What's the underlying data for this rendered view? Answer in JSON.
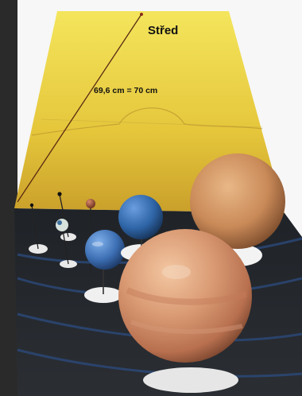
{
  "labels": {
    "center": "Střed",
    "distance": "69,6 cm = 70 cm"
  },
  "colors": {
    "sun_light": "#f1df4d",
    "sun_mid": "#e3c23a",
    "sun_dark": "#c39a28",
    "table_dark": "#1c2024",
    "table_blue_lines": "#2c4a7a",
    "mars": "#9a4a2f",
    "earth": "#3d6fb4",
    "neptune": "#2f66a8",
    "saturn": "#c8895a",
    "jupiter": "#d79a76"
  }
}
